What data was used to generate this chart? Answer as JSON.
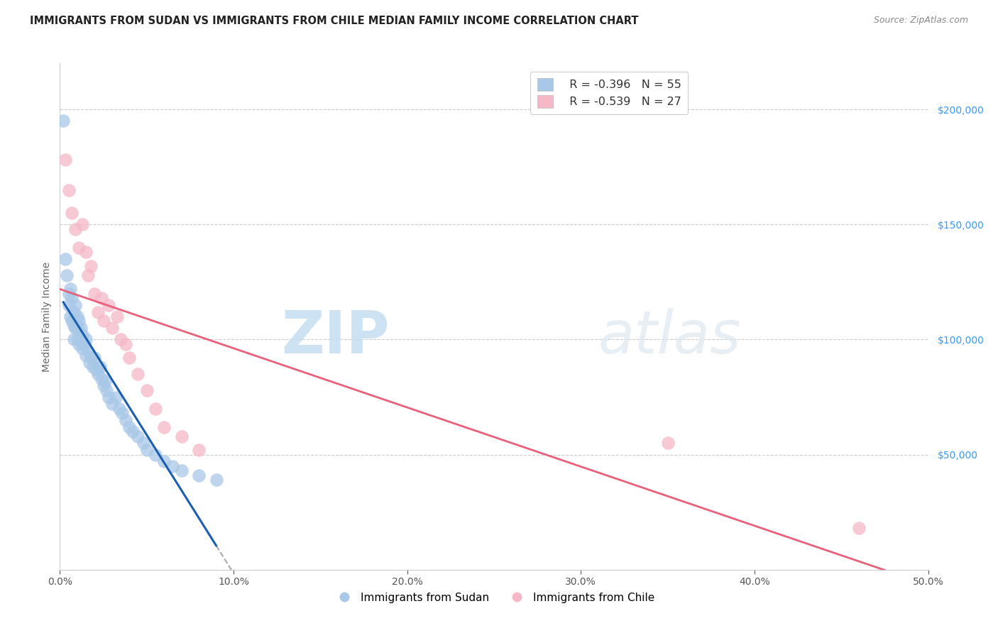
{
  "title": "IMMIGRANTS FROM SUDAN VS IMMIGRANTS FROM CHILE MEDIAN FAMILY INCOME CORRELATION CHART",
  "source": "Source: ZipAtlas.com",
  "ylabel": "Median Family Income",
  "xlim": [
    0,
    0.5
  ],
  "ylim": [
    0,
    220000
  ],
  "color_sudan": "#a8c8e8",
  "color_chile": "#f5b8c8",
  "line_color_sudan": "#1a5fad",
  "line_color_chile": "#e8607a",
  "legend_r_sudan": "-0.396",
  "legend_n_sudan": "55",
  "legend_r_chile": "-0.539",
  "legend_n_chile": "27",
  "sudan_x": [
    0.002,
    0.003,
    0.004,
    0.005,
    0.005,
    0.006,
    0.006,
    0.007,
    0.007,
    0.008,
    0.008,
    0.008,
    0.009,
    0.009,
    0.01,
    0.01,
    0.01,
    0.011,
    0.011,
    0.012,
    0.012,
    0.013,
    0.013,
    0.014,
    0.015,
    0.015,
    0.016,
    0.017,
    0.018,
    0.019,
    0.02,
    0.021,
    0.022,
    0.023,
    0.024,
    0.025,
    0.026,
    0.027,
    0.028,
    0.03,
    0.032,
    0.034,
    0.036,
    0.038,
    0.04,
    0.042,
    0.045,
    0.048,
    0.05,
    0.055,
    0.06,
    0.065,
    0.07,
    0.08,
    0.09
  ],
  "sudan_y": [
    195000,
    135000,
    128000,
    120000,
    115000,
    122000,
    110000,
    118000,
    108000,
    112000,
    106000,
    100000,
    115000,
    105000,
    110000,
    105000,
    100000,
    108000,
    98000,
    105000,
    100000,
    102000,
    96000,
    98000,
    100000,
    93000,
    95000,
    90000,
    92000,
    88000,
    92000,
    87000,
    85000,
    88000,
    83000,
    80000,
    82000,
    78000,
    75000,
    72000,
    75000,
    70000,
    68000,
    65000,
    62000,
    60000,
    58000,
    55000,
    52000,
    50000,
    47000,
    45000,
    43000,
    41000,
    39000
  ],
  "chile_x": [
    0.003,
    0.005,
    0.007,
    0.009,
    0.011,
    0.013,
    0.015,
    0.016,
    0.018,
    0.02,
    0.022,
    0.024,
    0.025,
    0.028,
    0.03,
    0.033,
    0.035,
    0.038,
    0.04,
    0.045,
    0.05,
    0.055,
    0.06,
    0.07,
    0.08,
    0.35,
    0.46
  ],
  "chile_y": [
    178000,
    165000,
    155000,
    148000,
    140000,
    150000,
    138000,
    128000,
    132000,
    120000,
    112000,
    118000,
    108000,
    115000,
    105000,
    110000,
    100000,
    98000,
    92000,
    85000,
    78000,
    70000,
    62000,
    58000,
    52000,
    55000,
    18000
  ]
}
